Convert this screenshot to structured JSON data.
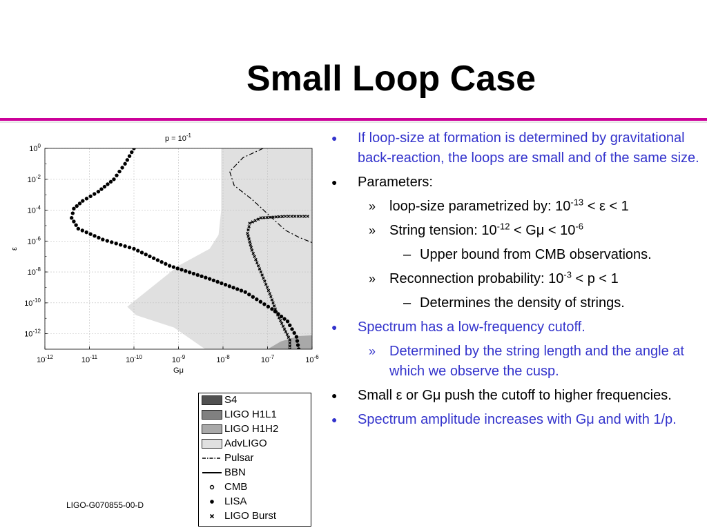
{
  "slide": {
    "title": "Small Loop Case",
    "footer": "LIGO-G070855-00-D"
  },
  "colors": {
    "rule": "#cc0099",
    "blue_text": "#3333cc"
  },
  "chart_data": {
    "type": "scatter",
    "title": "p = 10^-1",
    "title_base": "p = 10",
    "title_exp": "-1",
    "xlabel": "Gμ",
    "ylabel": "ε",
    "x_scale": "log",
    "y_scale": "log",
    "xlim_log10": [
      -12,
      -6
    ],
    "ylim_log10": [
      -13,
      0
    ],
    "grid": true,
    "x_ticks": [
      {
        "base": "10",
        "exp": "-12",
        "v": -12
      },
      {
        "base": "10",
        "exp": "-11",
        "v": -11
      },
      {
        "base": "10",
        "exp": "-10",
        "v": -10
      },
      {
        "base": "10",
        "exp": "-9",
        "v": -9
      },
      {
        "base": "10",
        "exp": "-8",
        "v": -8
      },
      {
        "base": "10",
        "exp": "-7",
        "v": -7
      },
      {
        "base": "10",
        "exp": "-6",
        "v": -6
      }
    ],
    "y_ticks": [
      {
        "base": "10",
        "exp": "0",
        "v": 0
      },
      {
        "base": "10",
        "exp": "-2",
        "v": -2
      },
      {
        "base": "10",
        "exp": "-4",
        "v": -4
      },
      {
        "base": "10",
        "exp": "-6",
        "v": -6
      },
      {
        "base": "10",
        "exp": "-8",
        "v": -8
      },
      {
        "base": "10",
        "exp": "-10",
        "v": -10
      },
      {
        "base": "10",
        "exp": "-12",
        "v": -12
      }
    ],
    "regions": [
      {
        "name": "AdvLIGO",
        "color": "#e0e0e0",
        "polygon_log10": [
          [
            -8.04,
            0
          ],
          [
            -6,
            0
          ],
          [
            -6,
            -13
          ],
          [
            -8.4,
            -13
          ],
          [
            -9.1,
            -11.6
          ],
          [
            -9.95,
            -10.8
          ],
          [
            -10.15,
            -10.25
          ],
          [
            -9.0,
            -7.6
          ],
          [
            -8.3,
            -6.5
          ],
          [
            -8.1,
            -5.6
          ],
          [
            -8.04,
            -4
          ]
        ]
      },
      {
        "name": "LIGO H1H2",
        "color": "#a9a9a9",
        "polygon_log10": [
          [
            -7.0,
            -13
          ],
          [
            -6.7,
            -12.5
          ],
          [
            -6.3,
            -12.15
          ],
          [
            -6,
            -12.1
          ],
          [
            -6,
            -13
          ]
        ]
      }
    ],
    "curves": [
      {
        "name": "LISA",
        "marker": "dot",
        "points_log10": [
          [
            -10.0,
            0
          ],
          [
            -10.2,
            -1
          ],
          [
            -10.45,
            -2
          ],
          [
            -10.8,
            -2.8
          ],
          [
            -11.15,
            -3.4
          ],
          [
            -11.35,
            -3.9
          ],
          [
            -11.4,
            -4.5
          ],
          [
            -11.25,
            -5.2
          ],
          [
            -10.7,
            -5.9
          ],
          [
            -10.0,
            -6.5
          ],
          [
            -9.2,
            -7.6
          ],
          [
            -8.3,
            -8.45
          ],
          [
            -7.5,
            -9.3
          ],
          [
            -6.9,
            -10.4
          ],
          [
            -6.55,
            -11.2
          ],
          [
            -6.35,
            -12.2
          ],
          [
            -6.3,
            -13
          ]
        ]
      },
      {
        "name": "LIGO Burst",
        "marker": "x",
        "points_log10": [
          [
            -6.1,
            -4.4
          ],
          [
            -6.6,
            -4.4
          ],
          [
            -7.15,
            -4.5
          ],
          [
            -7.4,
            -4.85
          ],
          [
            -7.45,
            -5.5
          ],
          [
            -7.35,
            -6.6
          ],
          [
            -7.15,
            -8.0
          ],
          [
            -6.95,
            -9.4
          ],
          [
            -6.8,
            -10.6
          ],
          [
            -6.62,
            -11.7
          ],
          [
            -6.5,
            -12.4
          ],
          [
            -6.5,
            -13
          ]
        ]
      },
      {
        "name": "Pulsar",
        "marker": "dashdot",
        "points_log10": [
          [
            -7.1,
            0
          ],
          [
            -7.55,
            -0.6
          ],
          [
            -7.85,
            -1.5
          ],
          [
            -7.75,
            -2.4
          ],
          [
            -7.35,
            -3.3
          ],
          [
            -6.9,
            -4.5
          ],
          [
            -6.6,
            -5.3
          ],
          [
            -6.3,
            -5.75
          ],
          [
            -6.0,
            -6.1
          ]
        ]
      }
    ]
  },
  "legend": [
    {
      "label": "S4",
      "kind": "fill",
      "color": "#505050"
    },
    {
      "label": "LIGO H1L1",
      "kind": "fill",
      "color": "#808080"
    },
    {
      "label": "LIGO H1H2",
      "kind": "fill",
      "color": "#a9a9a9"
    },
    {
      "label": "AdvLIGO",
      "kind": "fill",
      "color": "#e0e0e0"
    },
    {
      "label": "Pulsar",
      "kind": "dashdot",
      "color": "#000000"
    },
    {
      "label": "BBN",
      "kind": "line",
      "color": "#000000"
    },
    {
      "label": "CMB",
      "kind": "circle",
      "color": "#000000"
    },
    {
      "label": "LISA",
      "kind": "dot",
      "color": "#000000"
    },
    {
      "label": "LIGO Burst",
      "kind": "x",
      "color": "#000000"
    }
  ],
  "bullets": {
    "b1": "If loop-size at formation is determined by gravitational back-reaction, the loops are small and of the same size.",
    "b2": "Parameters:",
    "b2a_pre": "loop-size parametrized by: 10",
    "b2a_exp": "-13",
    "b2a_post": " < ε < 1",
    "b2b_pre": "String tension: 10",
    "b2b_exp1": "-12",
    "b2b_mid": " < Gμ < 10",
    "b2b_exp2": "-6",
    "b2b1": "Upper bound from CMB observations.",
    "b2c_pre": "Reconnection probability: 10",
    "b2c_exp": "-3",
    "b2c_post": " < p < 1",
    "b2c1": "Determines the density of strings.",
    "b3": "Spectrum has a low-frequency cutoff.",
    "b3a": "Determined by the string length and the angle at which we observe the cusp.",
    "b4": "Small ε or Gμ push the cutoff to higher frequencies.",
    "b5": "Spectrum amplitude increases with Gμ and with 1/p.",
    "marks": {
      "l1": "●",
      "l2": "»",
      "l3": "–"
    }
  }
}
